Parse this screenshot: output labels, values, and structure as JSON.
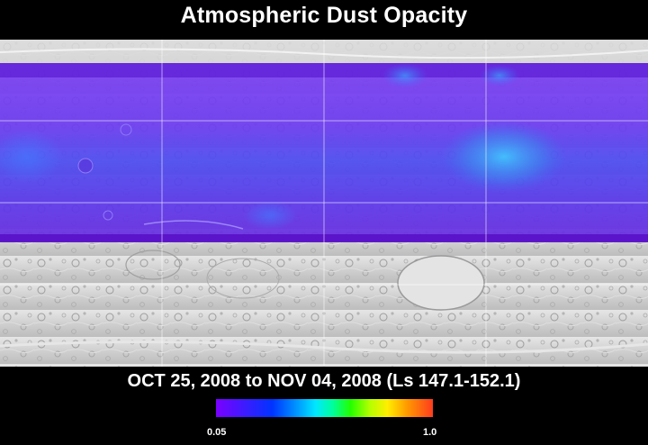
{
  "title": "Atmospheric Dust Opacity",
  "date_range": "OCT 25, 2008 to NOV 04, 2008 (Ls 147.1-152.1)",
  "colorbar": {
    "min_label": "0.05",
    "max_label": "1.0",
    "colors": [
      "#7a00ff",
      "#0033ff",
      "#00e8ff",
      "#22ff00",
      "#ffee00",
      "#ff3b1e"
    ]
  },
  "map": {
    "base_color": "#cfcfcf",
    "overlay_color": "#6a2cf0"
  }
}
